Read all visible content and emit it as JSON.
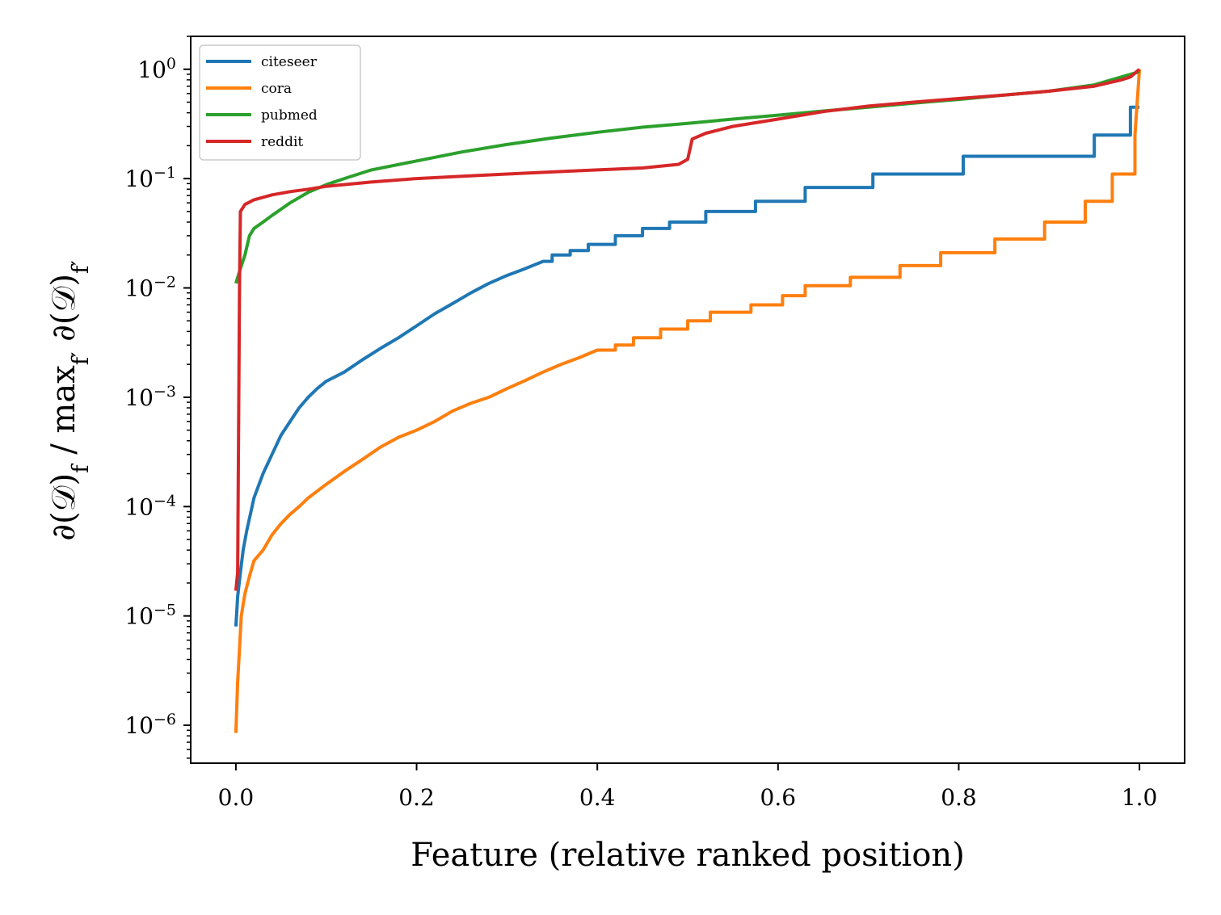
{
  "chart_data": {
    "type": "line",
    "title": "",
    "xlabel": "Feature (relative ranked position)",
    "ylabel": "∂(𝒟)_f / max_f′ ∂(𝒟)_f′",
    "ylabel_parts": {
      "a": "∂(𝒟)",
      "a_sub": "f",
      "b": " / max",
      "b_sub": "f′",
      "c": " ∂(𝒟)",
      "c_sub": "f′"
    },
    "xscale": "linear",
    "yscale": "log",
    "xlim": [
      -0.05,
      1.05
    ],
    "ylim": [
      4.5e-07,
      2.0
    ],
    "xticks": [
      0.0,
      0.2,
      0.4,
      0.6,
      0.8,
      1.0
    ],
    "xtick_labels": [
      "0.0",
      "0.2",
      "0.4",
      "0.6",
      "0.8",
      "1.0"
    ],
    "yticks": [
      1e-06,
      1e-05,
      0.0001,
      0.001,
      0.01,
      0.1,
      1
    ],
    "ytick_labels": [
      {
        "base": "10",
        "exp": "−6"
      },
      {
        "base": "10",
        "exp": "−5"
      },
      {
        "base": "10",
        "exp": "−4"
      },
      {
        "base": "10",
        "exp": "−3"
      },
      {
        "base": "10",
        "exp": "−2"
      },
      {
        "base": "10",
        "exp": "−1"
      },
      {
        "base": "10",
        "exp": "0"
      }
    ],
    "legend_position": "upper-left",
    "series": [
      {
        "name": "citeseer",
        "color": "#1f77b4",
        "x": [
          0.0,
          0.002,
          0.005,
          0.008,
          0.012,
          0.02,
          0.03,
          0.04,
          0.05,
          0.06,
          0.07,
          0.08,
          0.09,
          0.1,
          0.12,
          0.14,
          0.16,
          0.18,
          0.2,
          0.22,
          0.24,
          0.26,
          0.28,
          0.3,
          0.32,
          0.34,
          0.35,
          0.35,
          0.37,
          0.37,
          0.39,
          0.39,
          0.42,
          0.42,
          0.45,
          0.45,
          0.48,
          0.48,
          0.52,
          0.52,
          0.575,
          0.575,
          0.63,
          0.63,
          0.705,
          0.705,
          0.805,
          0.805,
          0.95,
          0.95,
          0.99,
          0.99,
          1.0
        ],
        "y": [
          8e-06,
          1.5e-05,
          2.5e-05,
          4e-05,
          6e-05,
          0.00012,
          0.0002,
          0.0003,
          0.00045,
          0.0006,
          0.0008,
          0.001,
          0.0012,
          0.0014,
          0.0017,
          0.0022,
          0.0028,
          0.0035,
          0.0045,
          0.0058,
          0.0072,
          0.009,
          0.011,
          0.013,
          0.015,
          0.0175,
          0.0175,
          0.02,
          0.02,
          0.022,
          0.022,
          0.025,
          0.025,
          0.03,
          0.03,
          0.035,
          0.035,
          0.04,
          0.04,
          0.05,
          0.05,
          0.062,
          0.062,
          0.083,
          0.083,
          0.11,
          0.11,
          0.16,
          0.16,
          0.25,
          0.25,
          0.45,
          0.45
        ]
      },
      {
        "name": "cora",
        "color": "#ff7f0e",
        "x": [
          0.0,
          0.002,
          0.004,
          0.006,
          0.01,
          0.015,
          0.02,
          0.03,
          0.04,
          0.05,
          0.06,
          0.07,
          0.08,
          0.1,
          0.12,
          0.14,
          0.16,
          0.18,
          0.2,
          0.22,
          0.24,
          0.26,
          0.28,
          0.3,
          0.32,
          0.34,
          0.36,
          0.38,
          0.4,
          0.42,
          0.42,
          0.44,
          0.44,
          0.47,
          0.47,
          0.5,
          0.5,
          0.525,
          0.525,
          0.57,
          0.57,
          0.605,
          0.605,
          0.63,
          0.63,
          0.68,
          0.68,
          0.735,
          0.735,
          0.78,
          0.78,
          0.84,
          0.84,
          0.895,
          0.895,
          0.94,
          0.94,
          0.97,
          0.97,
          0.995,
          0.995,
          1.0
        ],
        "y": [
          8.5e-07,
          2.5e-06,
          5e-06,
          1e-05,
          1.6e-05,
          2.3e-05,
          3.2e-05,
          4e-05,
          5.5e-05,
          7e-05,
          8.5e-05,
          0.0001,
          0.00012,
          0.00016,
          0.00021,
          0.00027,
          0.00035,
          0.00043,
          0.0005,
          0.0006,
          0.00075,
          0.00088,
          0.001,
          0.0012,
          0.00142,
          0.0017,
          0.002,
          0.0023,
          0.0027,
          0.0027,
          0.003,
          0.003,
          0.0035,
          0.0035,
          0.0042,
          0.0042,
          0.005,
          0.005,
          0.006,
          0.006,
          0.007,
          0.007,
          0.0085,
          0.0085,
          0.0105,
          0.0105,
          0.0125,
          0.0125,
          0.016,
          0.016,
          0.021,
          0.021,
          0.028,
          0.028,
          0.04,
          0.04,
          0.062,
          0.062,
          0.11,
          0.11,
          0.25,
          1.0
        ]
      },
      {
        "name": "pubmed",
        "color": "#2ca02c",
        "x": [
          0.0,
          0.005,
          0.01,
          0.015,
          0.02,
          0.03,
          0.04,
          0.06,
          0.08,
          0.1,
          0.12,
          0.15,
          0.2,
          0.25,
          0.3,
          0.35,
          0.4,
          0.45,
          0.5,
          0.55,
          0.6,
          0.65,
          0.7,
          0.75,
          0.8,
          0.85,
          0.9,
          0.95,
          0.98,
          1.0
        ],
        "y": [
          0.011,
          0.015,
          0.02,
          0.03,
          0.035,
          0.04,
          0.046,
          0.06,
          0.075,
          0.088,
          0.1,
          0.12,
          0.145,
          0.175,
          0.205,
          0.235,
          0.265,
          0.295,
          0.32,
          0.35,
          0.38,
          0.415,
          0.45,
          0.49,
          0.53,
          0.58,
          0.63,
          0.72,
          0.85,
          0.95
        ]
      },
      {
        "name": "reddit",
        "color": "#d62728",
        "x": [
          0.0,
          0.002,
          0.004,
          0.005,
          0.01,
          0.02,
          0.04,
          0.06,
          0.08,
          0.1,
          0.15,
          0.2,
          0.25,
          0.3,
          0.35,
          0.4,
          0.45,
          0.49,
          0.5,
          0.505,
          0.52,
          0.55,
          0.6,
          0.65,
          0.7,
          0.75,
          0.8,
          0.85,
          0.9,
          0.95,
          0.98,
          0.99,
          1.0
        ],
        "y": [
          1.7e-05,
          2.5e-05,
          0.01,
          0.05,
          0.058,
          0.064,
          0.071,
          0.076,
          0.08,
          0.085,
          0.093,
          0.1,
          0.105,
          0.11,
          0.115,
          0.12,
          0.125,
          0.135,
          0.15,
          0.23,
          0.26,
          0.3,
          0.35,
          0.41,
          0.46,
          0.5,
          0.54,
          0.58,
          0.63,
          0.7,
          0.8,
          0.85,
          1.0
        ]
      }
    ]
  }
}
